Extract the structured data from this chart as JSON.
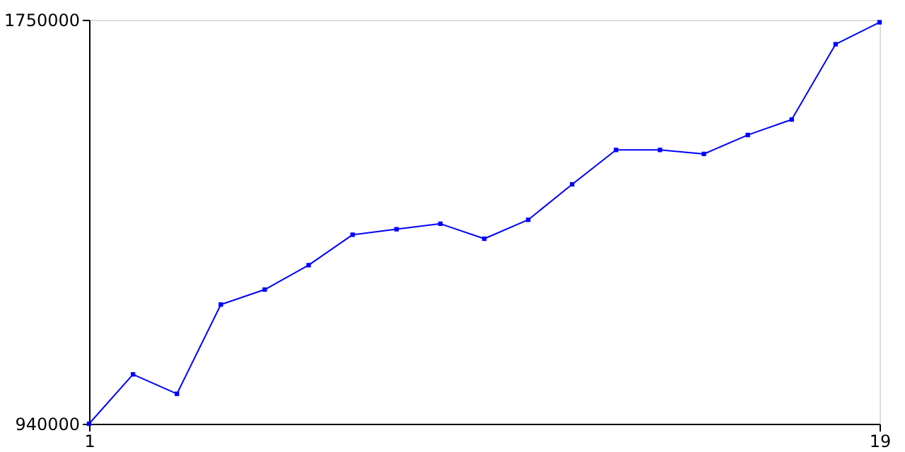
{
  "chart_data": {
    "type": "line",
    "x": [
      1,
      2,
      3,
      4,
      5,
      6,
      7,
      8,
      9,
      10,
      11,
      12,
      13,
      14,
      15,
      16,
      17,
      18,
      19
    ],
    "series": [
      {
        "color": "#0000ff",
        "values": [
          940000,
          1039000,
          1000000,
          1179000,
          1209000,
          1258000,
          1319000,
          1330000,
          1341000,
          1311000,
          1349000,
          1420000,
          1489000,
          1489000,
          1481000,
          1519000,
          1550000,
          1701000,
          1745000
        ]
      }
    ],
    "xlim": [
      1,
      19
    ],
    "xticks": [
      1,
      19
    ],
    "ylim": [
      940000,
      1750000
    ],
    "yticks": [
      940000,
      1750000
    ],
    "marker": "square",
    "line_style": "solid"
  }
}
